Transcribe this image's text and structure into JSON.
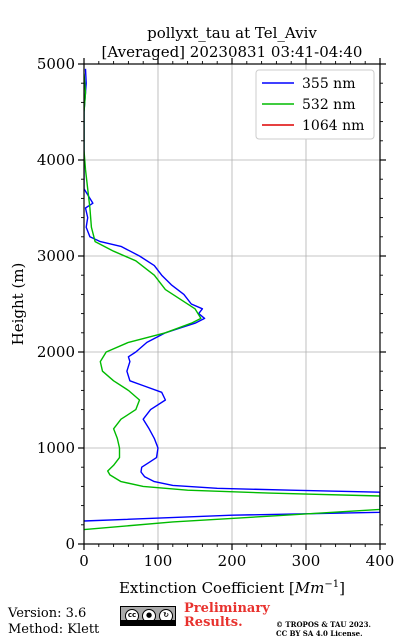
{
  "chart_data": {
    "type": "line",
    "title": "pollyxt_tau at Tel_Aviv",
    "subtitle": "[Averaged] 20230831 03:41-04:40",
    "xlabel": "Extinction Coefficient [",
    "xlabel_math": "Mm",
    "xlabel_sup": "−1",
    "xlabel_end": "]",
    "ylabel": "Height (m)",
    "xlim": [
      0,
      400
    ],
    "ylim": [
      0,
      5000
    ],
    "x_ticks": [
      0,
      100,
      200,
      300,
      400
    ],
    "y_ticks": [
      0,
      1000,
      2000,
      3000,
      4000,
      5000
    ],
    "grid": true,
    "legend_position": "top-right",
    "series": [
      {
        "name": "355 nm",
        "color": "#0000ff",
        "points": [
          [
            0,
            240
          ],
          [
            200,
            300
          ],
          [
            400,
            330
          ],
          [
            400,
            540
          ],
          [
            280,
            560
          ],
          [
            180,
            580
          ],
          [
            120,
            610
          ],
          [
            95,
            650
          ],
          [
            82,
            700
          ],
          [
            77,
            750
          ],
          [
            78,
            800
          ],
          [
            88,
            850
          ],
          [
            98,
            900
          ],
          [
            100,
            1000
          ],
          [
            95,
            1100
          ],
          [
            88,
            1200
          ],
          [
            80,
            1300
          ],
          [
            90,
            1400
          ],
          [
            110,
            1500
          ],
          [
            105,
            1580
          ],
          [
            80,
            1650
          ],
          [
            62,
            1700
          ],
          [
            58,
            1800
          ],
          [
            62,
            1900
          ],
          [
            60,
            1950
          ],
          [
            70,
            2000
          ],
          [
            85,
            2100
          ],
          [
            110,
            2200
          ],
          [
            130,
            2250
          ],
          [
            150,
            2300
          ],
          [
            163,
            2350
          ],
          [
            155,
            2400
          ],
          [
            160,
            2450
          ],
          [
            145,
            2500
          ],
          [
            135,
            2600
          ],
          [
            118,
            2700
          ],
          [
            105,
            2800
          ],
          [
            95,
            2900
          ],
          [
            75,
            3000
          ],
          [
            50,
            3100
          ],
          [
            22,
            3150
          ],
          [
            8,
            3200
          ],
          [
            3,
            3300
          ],
          [
            5,
            3400
          ],
          [
            2,
            3500
          ],
          [
            12,
            3550
          ],
          [
            4,
            3650
          ],
          [
            0,
            3700
          ],
          [
            0,
            3850
          ],
          [
            0,
            4000
          ],
          [
            0,
            4500
          ],
          [
            3,
            4800
          ],
          [
            2,
            4950
          ]
        ]
      },
      {
        "name": "532 nm",
        "color": "#00bb00",
        "points": [
          [
            0,
            150
          ],
          [
            120,
            230
          ],
          [
            250,
            290
          ],
          [
            400,
            360
          ],
          [
            400,
            500
          ],
          [
            250,
            530
          ],
          [
            140,
            560
          ],
          [
            80,
            600
          ],
          [
            50,
            650
          ],
          [
            35,
            720
          ],
          [
            32,
            760
          ],
          [
            40,
            820
          ],
          [
            48,
            900
          ],
          [
            48,
            1000
          ],
          [
            45,
            1100
          ],
          [
            40,
            1200
          ],
          [
            50,
            1300
          ],
          [
            70,
            1400
          ],
          [
            75,
            1500
          ],
          [
            60,
            1600
          ],
          [
            40,
            1700
          ],
          [
            25,
            1800
          ],
          [
            22,
            1900
          ],
          [
            30,
            2000
          ],
          [
            60,
            2100
          ],
          [
            110,
            2200
          ],
          [
            145,
            2300
          ],
          [
            158,
            2350
          ],
          [
            150,
            2450
          ],
          [
            130,
            2550
          ],
          [
            110,
            2650
          ],
          [
            95,
            2800
          ],
          [
            70,
            2950
          ],
          [
            40,
            3050
          ],
          [
            15,
            3150
          ],
          [
            10,
            3300
          ],
          [
            8,
            3500
          ],
          [
            5,
            3700
          ],
          [
            2,
            3900
          ],
          [
            0,
            4100
          ],
          [
            0,
            4500
          ],
          [
            2,
            4700
          ],
          [
            0,
            4900
          ]
        ]
      },
      {
        "name": "1064 nm",
        "color": "#dd0000",
        "points": []
      }
    ]
  },
  "footer": {
    "version": "Version: 3.6",
    "method": "Method: Klett",
    "preliminary_line1": "Preliminary",
    "preliminary_line2": "Results.",
    "copyright_line1": "© TROPOS & TAU 2023.",
    "copyright_line2": "CC BY SA 4.0 License.",
    "license_icon": "cc-by-sa-badge",
    "badge_cc": "cc",
    "badge_by": "BY",
    "badge_sa": "SA"
  }
}
